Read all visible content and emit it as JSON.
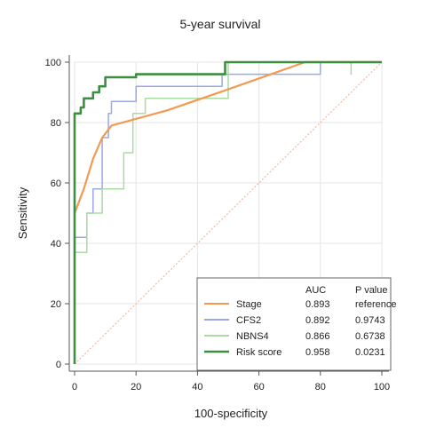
{
  "chart_data": {
    "type": "line",
    "title": "5-year survival",
    "xlabel": "100-specificity",
    "ylabel": "Sensitivity",
    "xlim": [
      0,
      100
    ],
    "ylim": [
      0,
      100
    ],
    "x_ticks": [
      0,
      20,
      40,
      60,
      80,
      100
    ],
    "y_ticks": [
      0,
      20,
      40,
      60,
      80,
      100
    ],
    "grid": true,
    "legend_position": "bottom-right",
    "legend_headers": [
      "AUC",
      "P value"
    ],
    "series": [
      {
        "name": "Stage",
        "auc": "0.893",
        "p_value": "reference",
        "color": "#f29a52",
        "style": "solid",
        "points": [
          [
            0,
            50
          ],
          [
            3,
            58
          ],
          [
            6,
            68
          ],
          [
            9,
            75
          ],
          [
            12,
            79
          ],
          [
            30,
            84
          ],
          [
            50,
            91
          ],
          [
            75,
            100
          ],
          [
            100,
            100
          ]
        ]
      },
      {
        "name": "CFS2",
        "auc": "0.892",
        "p_value": "0.9743",
        "color": "#9aa8e6",
        "style": "solid",
        "points": [
          [
            0,
            0
          ],
          [
            0,
            42
          ],
          [
            4,
            42
          ],
          [
            4,
            50
          ],
          [
            6,
            50
          ],
          [
            6,
            58
          ],
          [
            9,
            58
          ],
          [
            9,
            75
          ],
          [
            11,
            75
          ],
          [
            11,
            83
          ],
          [
            12,
            83
          ],
          [
            12,
            87
          ],
          [
            20,
            87
          ],
          [
            20,
            92
          ],
          [
            48,
            92
          ],
          [
            48,
            96
          ],
          [
            80,
            96
          ],
          [
            80,
            100
          ],
          [
            100,
            100
          ]
        ]
      },
      {
        "name": "NBNS4",
        "auc": "0.866",
        "p_value": "0.6738",
        "color": "#a8dca0",
        "style": "solid",
        "points": [
          [
            0,
            0
          ],
          [
            0,
            37
          ],
          [
            4,
            37
          ],
          [
            4,
            50
          ],
          [
            9,
            50
          ],
          [
            9,
            58
          ],
          [
            16,
            58
          ],
          [
            16,
            70
          ],
          [
            19,
            70
          ],
          [
            19,
            83
          ],
          [
            23,
            83
          ],
          [
            23,
            88
          ],
          [
            50,
            88
          ],
          [
            50,
            100
          ],
          [
            90,
            100
          ],
          [
            90,
            96
          ],
          [
            90,
            100
          ],
          [
            100,
            100
          ]
        ]
      },
      {
        "name": "Risk score",
        "auc": "0.958",
        "p_value": "0.0231",
        "color": "#3e8e41",
        "style": "solid",
        "points": [
          [
            0,
            0
          ],
          [
            0,
            83
          ],
          [
            2,
            83
          ],
          [
            2,
            85
          ],
          [
            3,
            85
          ],
          [
            3,
            88
          ],
          [
            6,
            88
          ],
          [
            6,
            90
          ],
          [
            8,
            90
          ],
          [
            8,
            92
          ],
          [
            10,
            92
          ],
          [
            10,
            95
          ],
          [
            20,
            95
          ],
          [
            20,
            96
          ],
          [
            49,
            96
          ],
          [
            49,
            100
          ],
          [
            100,
            100
          ]
        ]
      }
    ],
    "reference_line": [
      [
        0,
        0
      ],
      [
        100,
        100
      ]
    ],
    "reference_color": "#f0b8a8"
  }
}
